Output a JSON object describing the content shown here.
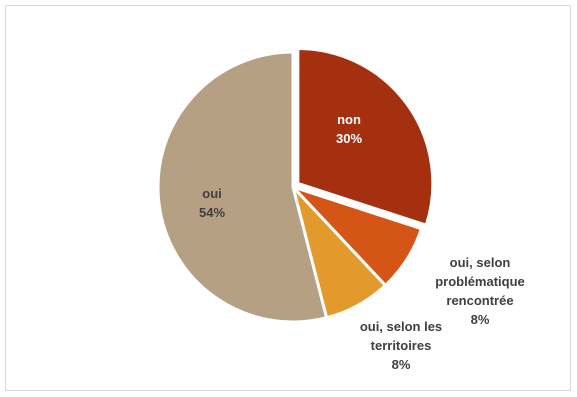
{
  "chart_data": {
    "type": "pie",
    "title": "",
    "slices": [
      {
        "name": "non",
        "value": 30,
        "label_lines": [
          "non",
          "30%"
        ],
        "color": "#a5300f",
        "exploded": true,
        "label_color": "#ffffff"
      },
      {
        "name": "oui, selon problématique rencontrée",
        "value": 8,
        "label_lines": [
          "oui, selon",
          "problématique",
          "rencontrée",
          "8%"
        ],
        "color": "#d55516",
        "exploded": false,
        "label_color": "#404040"
      },
      {
        "name": "oui, selon les territoires",
        "value": 8,
        "label_lines": [
          "oui, selon les",
          "territoires",
          "8%"
        ],
        "color": "#e39a2c",
        "exploded": false,
        "label_color": "#404040"
      },
      {
        "name": "oui",
        "value": 54,
        "label_lines": [
          "oui",
          "54%"
        ],
        "color": "#b5a083",
        "exploded": false,
        "label_color": "#404040"
      }
    ],
    "slice_border_color": "#ffffff",
    "legend": "none"
  }
}
